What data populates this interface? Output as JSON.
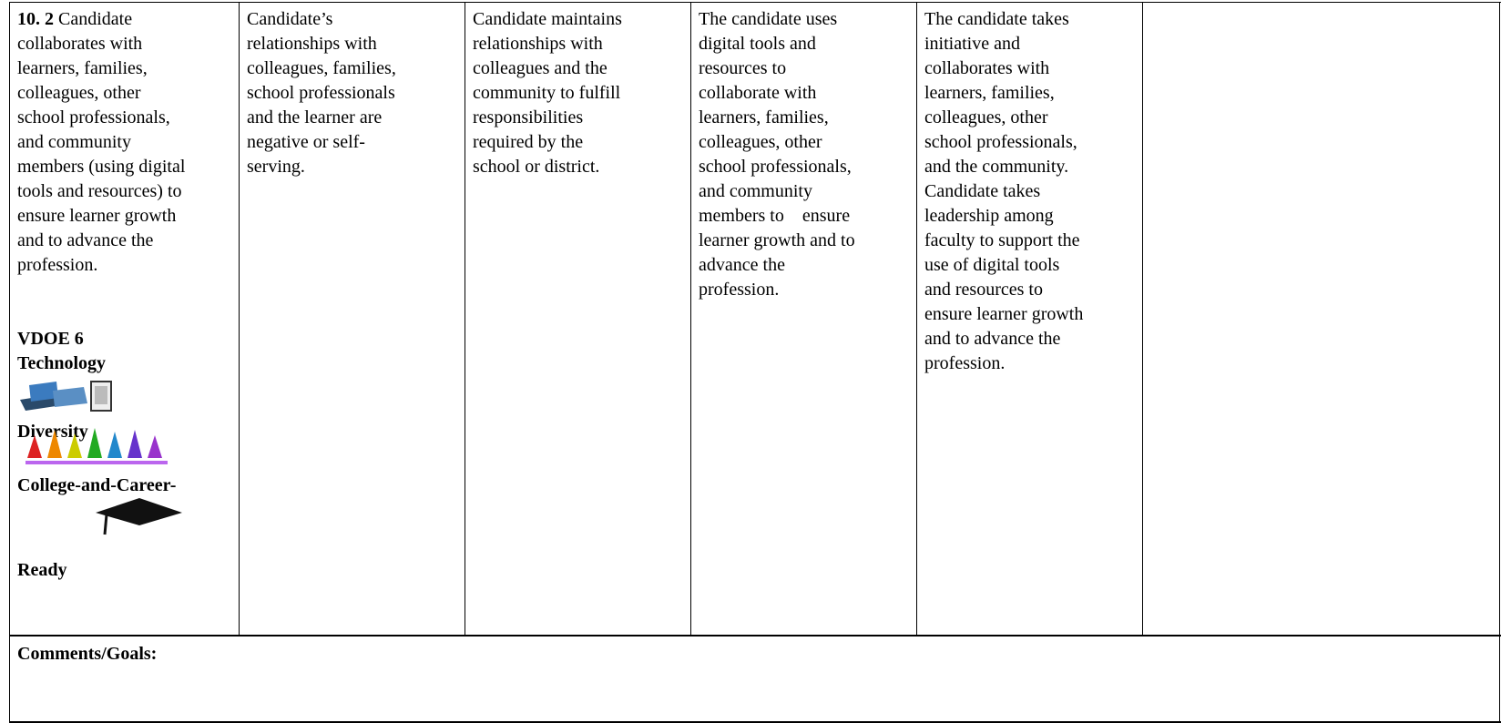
{
  "criterion": {
    "number": "10. 2",
    "lines": [
      "Candidate",
      "collaborates with",
      "learners, families,",
      "colleagues, other",
      "school professionals,",
      "and community",
      "members (using digital",
      "tools and resources) to",
      "ensure learner growth",
      "and to advance the",
      "profession."
    ],
    "labels": {
      "vdoe": "VDOE 6",
      "technology": "Technology",
      "diversity": "Diversity",
      "ccr": "College-and-Career-",
      "ready": "Ready"
    }
  },
  "levels": [
    {
      "lines": [
        "Candidate’s",
        "relationships with",
        "colleagues, families,",
        "school professionals",
        "and the learner are",
        "negative or self-",
        "serving."
      ]
    },
    {
      "lines": [
        "Candidate maintains",
        "relationships with",
        "colleagues and the",
        "community to fulfill",
        "responsibilities",
        "required by the",
        "school or district."
      ]
    },
    {
      "lines": [
        "The candidate uses",
        "digital tools and",
        "resources to",
        "collaborate with",
        "learners, families,",
        "colleagues, other",
        "school professionals,",
        "and community",
        "members to    ensure",
        "learner growth and to",
        "advance the",
        "profession."
      ]
    },
    {
      "lines": [
        "The candidate takes",
        "initiative and",
        "collaborates with",
        "learners, families,",
        "colleagues, other",
        "school professionals,",
        "and the community.",
        "Candidate takes",
        "leadership among",
        "faculty to support the",
        "use of digital tools",
        "and resources to",
        "ensure learner growth",
        "and to advance the",
        "profession."
      ]
    }
  ],
  "comments_label": "Comments/Goals:"
}
